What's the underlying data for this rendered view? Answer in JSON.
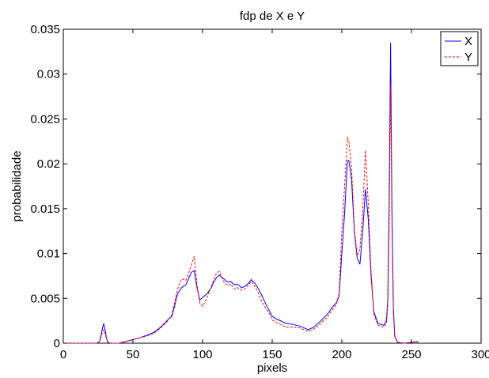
{
  "chart_data": {
    "type": "line",
    "title": "fdp de X e Y",
    "xlabel": "pixels",
    "ylabel": "probabilidade",
    "xlim": [
      0,
      300
    ],
    "ylim": [
      0,
      0.035
    ],
    "xticks": [
      0,
      50,
      100,
      150,
      200,
      250,
      300
    ],
    "xtick_labels": [
      "0",
      "50",
      "100",
      "150",
      "200",
      "250",
      "300"
    ],
    "yticks": [
      0,
      0.005,
      0.01,
      0.015,
      0.02,
      0.025,
      0.03,
      0.035
    ],
    "ytick_labels": [
      "0",
      "0.005",
      "0.01",
      "0.015",
      "0.02",
      "0.025",
      "0.03",
      "0.035"
    ],
    "grid": false,
    "legend_position": "top-right",
    "series": [
      {
        "name": "X",
        "color": "#0000ff",
        "style": "solid",
        "points": [
          [
            0,
            0
          ],
          [
            24,
            0
          ],
          [
            26,
            0.0002
          ],
          [
            27,
            0.0008
          ],
          [
            28,
            0.0016
          ],
          [
            29,
            0.0022
          ],
          [
            30,
            0.0015
          ],
          [
            31,
            0.0006
          ],
          [
            32,
            0.0001
          ],
          [
            34,
            0
          ],
          [
            40,
            0
          ],
          [
            45,
            0.0002
          ],
          [
            50,
            0.0004
          ],
          [
            55,
            0.0006
          ],
          [
            60,
            0.0009
          ],
          [
            65,
            0.0012
          ],
          [
            70,
            0.0018
          ],
          [
            75,
            0.0026
          ],
          [
            78,
            0.003
          ],
          [
            80,
            0.0042
          ],
          [
            82,
            0.0055
          ],
          [
            85,
            0.0062
          ],
          [
            88,
            0.0065
          ],
          [
            90,
            0.0072
          ],
          [
            92,
            0.0079
          ],
          [
            94,
            0.0081
          ],
          [
            96,
            0.0062
          ],
          [
            98,
            0.0048
          ],
          [
            100,
            0.0051
          ],
          [
            103,
            0.0055
          ],
          [
            106,
            0.0061
          ],
          [
            108,
            0.0068
          ],
          [
            110,
            0.0073
          ],
          [
            112,
            0.0076
          ],
          [
            115,
            0.0072
          ],
          [
            118,
            0.0068
          ],
          [
            120,
            0.0069
          ],
          [
            123,
            0.0065
          ],
          [
            125,
            0.0066
          ],
          [
            128,
            0.0062
          ],
          [
            130,
            0.0063
          ],
          [
            133,
            0.0067
          ],
          [
            135,
            0.0071
          ],
          [
            138,
            0.0066
          ],
          [
            140,
            0.0061
          ],
          [
            142,
            0.0055
          ],
          [
            145,
            0.0045
          ],
          [
            148,
            0.0036
          ],
          [
            150,
            0.003
          ],
          [
            153,
            0.0027
          ],
          [
            156,
            0.0025
          ],
          [
            160,
            0.0022
          ],
          [
            165,
            0.0021
          ],
          [
            170,
            0.0019
          ],
          [
            173,
            0.0017
          ],
          [
            176,
            0.0015
          ],
          [
            180,
            0.0018
          ],
          [
            185,
            0.0025
          ],
          [
            190,
            0.0033
          ],
          [
            193,
            0.004
          ],
          [
            196,
            0.0045
          ],
          [
            198,
            0.0052
          ],
          [
            200,
            0.01
          ],
          [
            202,
            0.0145
          ],
          [
            204,
            0.0203
          ],
          [
            205,
            0.0204
          ],
          [
            207,
            0.0182
          ],
          [
            209,
            0.0125
          ],
          [
            211,
            0.0095
          ],
          [
            213,
            0.0088
          ],
          [
            215,
            0.0125
          ],
          [
            217,
            0.0172
          ],
          [
            219,
            0.0138
          ],
          [
            221,
            0.0075
          ],
          [
            223,
            0.0035
          ],
          [
            226,
            0.0022
          ],
          [
            230,
            0.002
          ],
          [
            232,
            0.0025
          ],
          [
            233,
            0.0048
          ],
          [
            234,
            0.0158
          ],
          [
            235,
            0.0335
          ],
          [
            236,
            0.015
          ],
          [
            237,
            0.004
          ],
          [
            238,
            0.0008
          ],
          [
            240,
            0.0001
          ],
          [
            245,
            0
          ],
          [
            250,
            0.0001
          ],
          [
            254,
            0.0002
          ],
          [
            255,
            0
          ]
        ]
      },
      {
        "name": "Y",
        "color": "#ff0000",
        "style": "dashed",
        "points": [
          [
            0,
            0
          ],
          [
            24,
            0
          ],
          [
            26,
            0.0002
          ],
          [
            27,
            0.0006
          ],
          [
            28,
            0.0012
          ],
          [
            29,
            0.0015
          ],
          [
            30,
            0.0011
          ],
          [
            31,
            0.0005
          ],
          [
            32,
            0.0001
          ],
          [
            34,
            0
          ],
          [
            40,
            0
          ],
          [
            45,
            0.0002
          ],
          [
            50,
            0.0004
          ],
          [
            55,
            0.0006
          ],
          [
            60,
            0.0008
          ],
          [
            65,
            0.0011
          ],
          [
            70,
            0.0017
          ],
          [
            75,
            0.0025
          ],
          [
            78,
            0.0032
          ],
          [
            80,
            0.0046
          ],
          [
            82,
            0.006
          ],
          [
            85,
            0.0072
          ],
          [
            88,
            0.007
          ],
          [
            90,
            0.0078
          ],
          [
            92,
            0.0088
          ],
          [
            94,
            0.0097
          ],
          [
            96,
            0.0065
          ],
          [
            98,
            0.0045
          ],
          [
            100,
            0.0041
          ],
          [
            103,
            0.005
          ],
          [
            106,
            0.0062
          ],
          [
            108,
            0.0071
          ],
          [
            110,
            0.0078
          ],
          [
            112,
            0.008
          ],
          [
            115,
            0.0069
          ],
          [
            118,
            0.0064
          ],
          [
            120,
            0.0066
          ],
          [
            123,
            0.006
          ],
          [
            125,
            0.0062
          ],
          [
            128,
            0.0059
          ],
          [
            130,
            0.006
          ],
          [
            133,
            0.0065
          ],
          [
            135,
            0.0069
          ],
          [
            138,
            0.0062
          ],
          [
            140,
            0.0056
          ],
          [
            142,
            0.0048
          ],
          [
            145,
            0.004
          ],
          [
            148,
            0.0033
          ],
          [
            150,
            0.0026
          ],
          [
            153,
            0.0023
          ],
          [
            156,
            0.0021
          ],
          [
            160,
            0.0018
          ],
          [
            165,
            0.0018
          ],
          [
            170,
            0.0017
          ],
          [
            173,
            0.0015
          ],
          [
            176,
            0.0013
          ],
          [
            180,
            0.0016
          ],
          [
            185,
            0.0022
          ],
          [
            190,
            0.003
          ],
          [
            193,
            0.0037
          ],
          [
            196,
            0.0043
          ],
          [
            198,
            0.0055
          ],
          [
            200,
            0.0125
          ],
          [
            202,
            0.0175
          ],
          [
            204,
            0.0229
          ],
          [
            205,
            0.0226
          ],
          [
            207,
            0.0195
          ],
          [
            209,
            0.0128
          ],
          [
            211,
            0.0098
          ],
          [
            213,
            0.0105
          ],
          [
            215,
            0.0148
          ],
          [
            217,
            0.0215
          ],
          [
            219,
            0.0155
          ],
          [
            221,
            0.008
          ],
          [
            223,
            0.0032
          ],
          [
            226,
            0.002
          ],
          [
            230,
            0.0018
          ],
          [
            232,
            0.0022
          ],
          [
            233,
            0.0042
          ],
          [
            234,
            0.0132
          ],
          [
            235,
            0.0288
          ],
          [
            236,
            0.0135
          ],
          [
            237,
            0.0035
          ],
          [
            238,
            0.0007
          ],
          [
            240,
            0.0001
          ],
          [
            245,
            0
          ],
          [
            250,
            0.0001
          ],
          [
            254,
            0.0002
          ],
          [
            255,
            0
          ]
        ]
      }
    ]
  }
}
